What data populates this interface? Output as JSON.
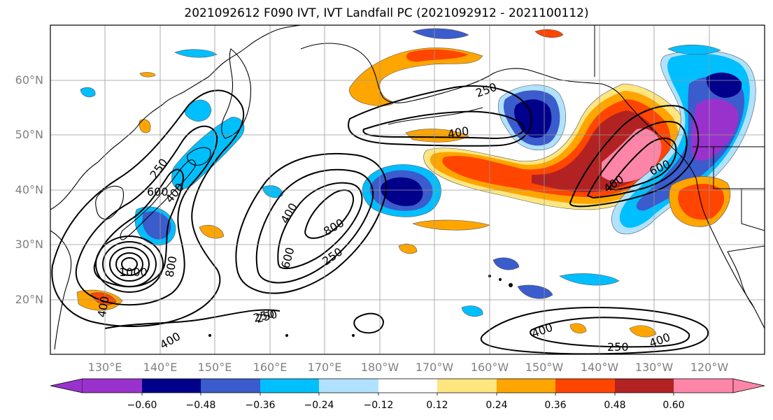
{
  "title": "2021092612 F090 IVT, IVT Landfall PC (2021092912 - 2021100112)",
  "lat_labels": [
    "60°N",
    "50°N",
    "40°N",
    "30°N",
    "20°N"
  ],
  "lon_labels": [
    "130°E",
    "140°E",
    "150°E",
    "160°E",
    "170°E",
    "180°W",
    "170°W",
    "160°W",
    "150°W",
    "140°W",
    "130°W",
    "120°W"
  ],
  "contour_labels": [
    "250",
    "400",
    "600",
    "400",
    "250",
    "400",
    "800",
    "600",
    "250",
    "1000",
    "800",
    "400",
    "400",
    "250",
    "250",
    "400",
    "400",
    "600",
    "250",
    "400"
  ],
  "colorbar": {
    "tick_labels": [
      "−0.60",
      "−0.48",
      "−0.36",
      "−0.24",
      "−0.12",
      "0.12",
      "0.24",
      "0.36",
      "0.48",
      "0.60"
    ],
    "colors": [
      "#9932cc",
      "#00008b",
      "#3a5ccc",
      "#00bfff",
      "#b0e2ff",
      "#ffffff",
      "#ffe680",
      "#ffa500",
      "#ff4500",
      "#b22222",
      "#ff85a8"
    ]
  },
  "shading_colors": {
    "purple": "#9932cc",
    "navy": "#00008b",
    "royal": "#3a5ccc",
    "sky": "#00bfff",
    "pale": "#b0e2ff",
    "yellow": "#ffe680",
    "orange": "#ffa500",
    "redorange": "#ff4500",
    "firebrick": "#b22222",
    "pink": "#ff85a8"
  }
}
